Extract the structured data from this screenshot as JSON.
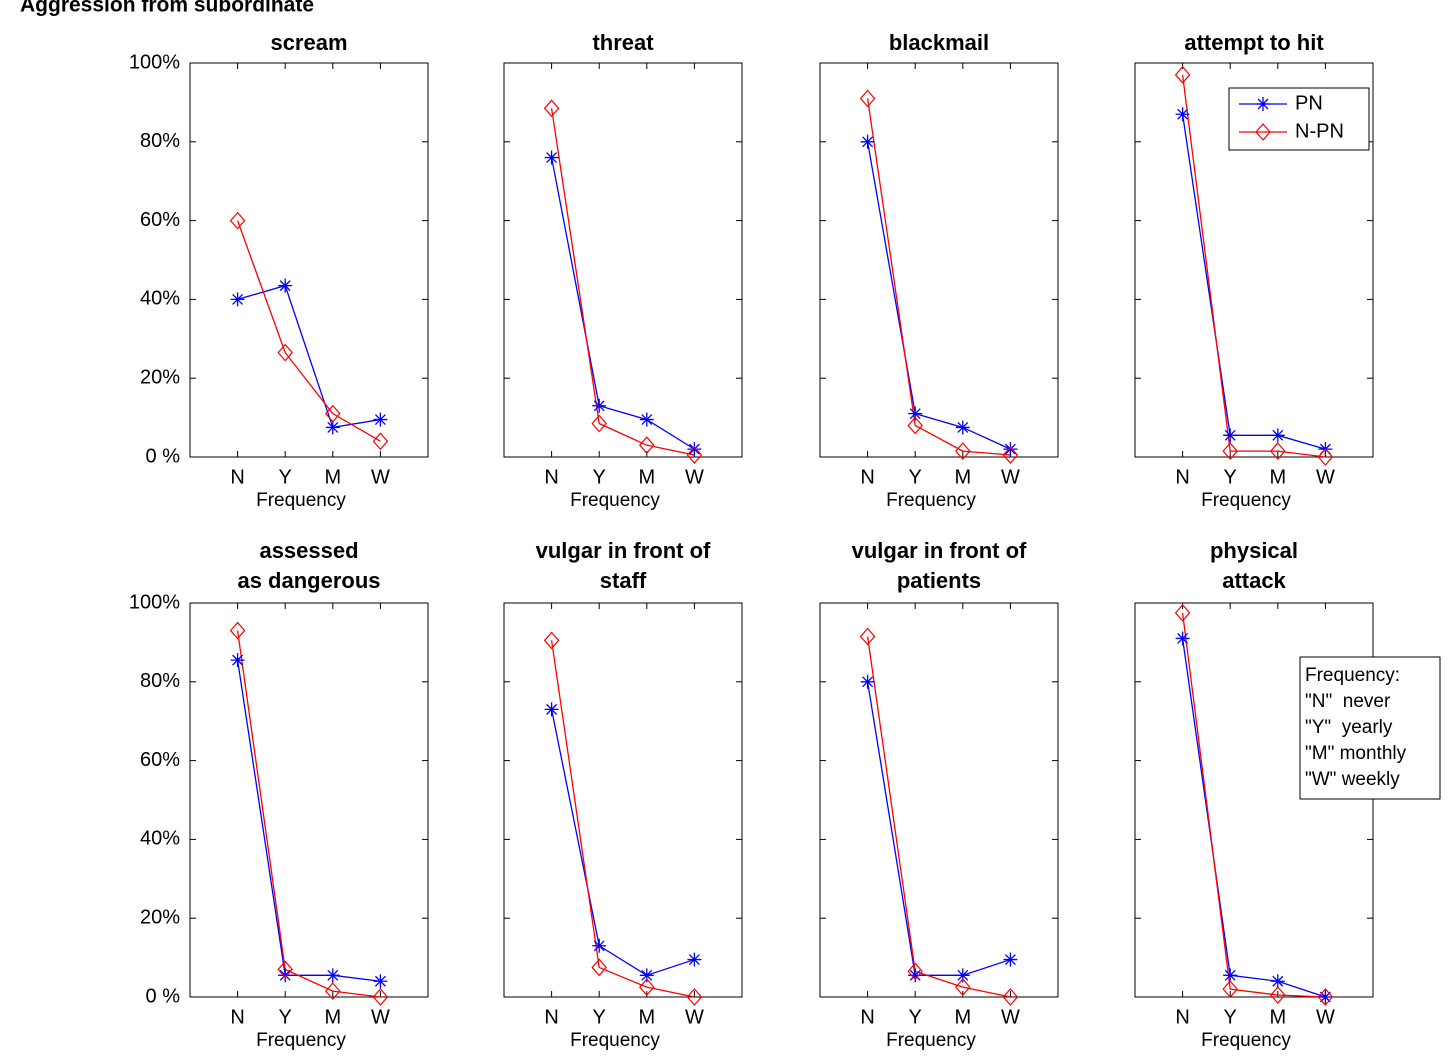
{
  "title": "Aggression from subordinate",
  "frequency_note": {
    "title": "Frequency:",
    "lines": [
      "\"N\"  never",
      "\"Y\"  yearly",
      "\"M\" monthly",
      "\"W\" weekly"
    ]
  },
  "chart_data": [
    {
      "type": "line",
      "title": [
        "scream"
      ],
      "xlabel": "Frequency",
      "categories": [
        "N",
        "Y",
        "M",
        "W"
      ],
      "ylim": [
        0,
        100
      ],
      "yticks": [
        {
          "value": 0,
          "label": "0 %"
        },
        {
          "value": 20,
          "label": "20%"
        },
        {
          "value": 40,
          "label": "40%"
        },
        {
          "value": 60,
          "label": "60%"
        },
        {
          "value": 80,
          "label": "80%"
        },
        {
          "value": 100,
          "label": "100%"
        }
      ],
      "series": [
        {
          "name": "PN",
          "color": "#0000ff",
          "marker": "asterisk",
          "values": [
            40,
            43.5,
            7.5,
            9.5
          ]
        },
        {
          "name": "N-PN",
          "color": "#ff0000",
          "marker": "diamond",
          "values": [
            60,
            26.5,
            11,
            4
          ]
        }
      ]
    },
    {
      "type": "line",
      "title": [
        "threat"
      ],
      "xlabel": "Frequency",
      "categories": [
        "N",
        "Y",
        "M",
        "W"
      ],
      "ylim": [
        0,
        100
      ],
      "yticks": [
        0,
        20,
        40,
        60,
        80,
        100
      ],
      "show_ytick_labels": false,
      "series": [
        {
          "name": "PN",
          "color": "#0000ff",
          "marker": "asterisk",
          "values": [
            76,
            13,
            9.5,
            2
          ]
        },
        {
          "name": "N-PN",
          "color": "#ff0000",
          "marker": "diamond",
          "values": [
            88.5,
            8.5,
            3,
            0.5
          ]
        }
      ]
    },
    {
      "type": "line",
      "title": [
        "blackmail"
      ],
      "xlabel": "Frequency",
      "categories": [
        "N",
        "Y",
        "M",
        "W"
      ],
      "ylim": [
        0,
        100
      ],
      "yticks": [
        0,
        20,
        40,
        60,
        80,
        100
      ],
      "show_ytick_labels": false,
      "series": [
        {
          "name": "PN",
          "color": "#0000ff",
          "marker": "asterisk",
          "values": [
            80,
            11,
            7.5,
            2
          ]
        },
        {
          "name": "N-PN",
          "color": "#ff0000",
          "marker": "diamond",
          "values": [
            91,
            8,
            1.5,
            0.5
          ]
        }
      ]
    },
    {
      "type": "line",
      "title": [
        "attempt to hit"
      ],
      "xlabel": "Frequency",
      "categories": [
        "N",
        "Y",
        "M",
        "W"
      ],
      "ylim": [
        0,
        100
      ],
      "yticks": [
        0,
        20,
        40,
        60,
        80,
        100
      ],
      "show_ytick_labels": false,
      "legend": "upper right",
      "series": [
        {
          "name": "PN",
          "color": "#0000ff",
          "marker": "asterisk",
          "values": [
            87,
            5.5,
            5.5,
            2
          ]
        },
        {
          "name": "N-PN",
          "color": "#ff0000",
          "marker": "diamond",
          "values": [
            97,
            1.5,
            1.5,
            0
          ]
        }
      ]
    },
    {
      "type": "line",
      "title": [
        "assessed",
        "as dangerous"
      ],
      "xlabel": "Frequency",
      "categories": [
        "N",
        "Y",
        "M",
        "W"
      ],
      "ylim": [
        0,
        100
      ],
      "yticks": [
        {
          "value": 0,
          "label": "0 %"
        },
        {
          "value": 20,
          "label": "20%"
        },
        {
          "value": 40,
          "label": "40%"
        },
        {
          "value": 60,
          "label": "60%"
        },
        {
          "value": 80,
          "label": "80%"
        },
        {
          "value": 100,
          "label": "100%"
        }
      ],
      "series": [
        {
          "name": "PN",
          "color": "#0000ff",
          "marker": "asterisk",
          "values": [
            85.5,
            5.5,
            5.5,
            4
          ]
        },
        {
          "name": "N-PN",
          "color": "#ff0000",
          "marker": "diamond",
          "values": [
            93,
            7,
            1.5,
            0
          ]
        }
      ]
    },
    {
      "type": "line",
      "title": [
        "vulgar in front of",
        "staff"
      ],
      "xlabel": "Frequency",
      "categories": [
        "N",
        "Y",
        "M",
        "W"
      ],
      "ylim": [
        0,
        100
      ],
      "yticks": [
        0,
        20,
        40,
        60,
        80,
        100
      ],
      "show_ytick_labels": false,
      "series": [
        {
          "name": "PN",
          "color": "#0000ff",
          "marker": "asterisk",
          "values": [
            73,
            13,
            5.5,
            9.5
          ]
        },
        {
          "name": "N-PN",
          "color": "#ff0000",
          "marker": "diamond",
          "values": [
            90.5,
            7.5,
            2.5,
            0
          ]
        }
      ]
    },
    {
      "type": "line",
      "title": [
        "vulgar in front of",
        "patients"
      ],
      "xlabel": "Frequency",
      "categories": [
        "N",
        "Y",
        "M",
        "W"
      ],
      "ylim": [
        0,
        100
      ],
      "yticks": [
        0,
        20,
        40,
        60,
        80,
        100
      ],
      "show_ytick_labels": false,
      "series": [
        {
          "name": "PN",
          "color": "#0000ff",
          "marker": "asterisk",
          "values": [
            80,
            5.5,
            5.5,
            9.5
          ]
        },
        {
          "name": "N-PN",
          "color": "#ff0000",
          "marker": "diamond",
          "values": [
            91.5,
            6.5,
            2.5,
            0
          ]
        }
      ]
    },
    {
      "type": "line",
      "title": [
        "physical",
        "attack"
      ],
      "xlabel": "Frequency",
      "categories": [
        "N",
        "Y",
        "M",
        "W"
      ],
      "ylim": [
        0,
        100
      ],
      "yticks": [
        0,
        20,
        40,
        60,
        80,
        100
      ],
      "show_ytick_labels": false,
      "series": [
        {
          "name": "PN",
          "color": "#0000ff",
          "marker": "asterisk",
          "values": [
            91,
            5.5,
            4,
            0
          ]
        },
        {
          "name": "N-PN",
          "color": "#ff0000",
          "marker": "diamond",
          "values": [
            97.5,
            2,
            0.5,
            0
          ]
        }
      ]
    }
  ]
}
